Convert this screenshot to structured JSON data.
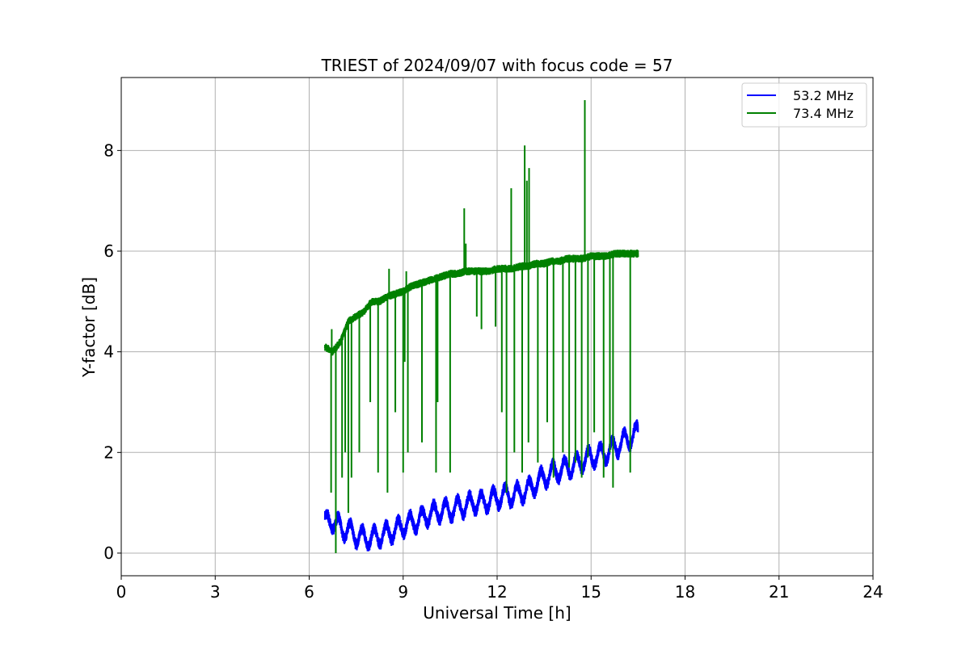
{
  "chart_data": {
    "type": "line",
    "title": "TRIEST of 2024/09/07 with focus code = 57",
    "xlabel": "Universal Time [h]",
    "ylabel": "Y-factor [dB]",
    "xlim": [
      0,
      24
    ],
    "ylim": [
      -0.45,
      9.45
    ],
    "xticks": [
      0,
      3,
      6,
      9,
      12,
      15,
      18,
      21,
      24
    ],
    "xtick_labels": [
      "0",
      "3",
      "6",
      "9",
      "12",
      "15",
      "18",
      "21",
      "24"
    ],
    "yticks": [
      0,
      2,
      4,
      6,
      8
    ],
    "ytick_labels": [
      "0",
      "2",
      "4",
      "6",
      "8"
    ],
    "grid": true,
    "legend_position": "top-right",
    "series": [
      {
        "name": "53.2 MHz",
        "color": "#0000ff",
        "x": [
          6.5,
          6.75,
          7.0,
          7.25,
          7.5,
          7.75,
          8.0,
          8.25,
          8.5,
          8.75,
          9.0,
          9.25,
          9.5,
          9.75,
          10.0,
          10.25,
          10.5,
          10.75,
          11.0,
          11.25,
          11.5,
          11.75,
          12.0,
          12.25,
          12.5,
          12.75,
          13.0,
          13.25,
          13.5,
          13.75,
          14.0,
          14.25,
          14.5,
          14.75,
          15.0,
          15.25,
          15.5,
          15.75,
          16.0,
          16.25,
          16.5
        ],
        "y": [
          0.6,
          0.65,
          0.5,
          0.45,
          0.35,
          0.3,
          0.3,
          0.35,
          0.4,
          0.45,
          0.55,
          0.6,
          0.65,
          0.75,
          0.8,
          0.85,
          0.85,
          0.9,
          0.95,
          1.0,
          1.0,
          1.05,
          1.1,
          1.15,
          1.15,
          1.2,
          1.25,
          1.4,
          1.5,
          1.6,
          1.65,
          1.7,
          1.75,
          1.85,
          1.9,
          1.95,
          2.0,
          2.1,
          2.2,
          2.3,
          2.4
        ]
      },
      {
        "name": "73.4 MHz",
        "color": "#008000",
        "x": [
          6.5,
          6.75,
          7.0,
          7.25,
          7.5,
          7.75,
          8.0,
          8.25,
          8.5,
          8.75,
          9.0,
          9.25,
          9.5,
          9.75,
          10.0,
          10.25,
          10.5,
          10.75,
          11.0,
          11.25,
          11.5,
          11.75,
          12.0,
          12.25,
          12.5,
          12.75,
          13.0,
          13.25,
          13.5,
          13.75,
          14.0,
          14.25,
          14.5,
          14.75,
          15.0,
          15.25,
          15.5,
          15.75,
          16.0,
          16.25,
          16.5
        ],
        "y": [
          4.1,
          4.0,
          4.2,
          4.6,
          4.7,
          4.8,
          5.0,
          5.0,
          5.1,
          5.15,
          5.2,
          5.3,
          5.35,
          5.4,
          5.45,
          5.5,
          5.55,
          5.55,
          5.6,
          5.6,
          5.6,
          5.6,
          5.65,
          5.65,
          5.65,
          5.7,
          5.7,
          5.75,
          5.75,
          5.8,
          5.8,
          5.85,
          5.85,
          5.85,
          5.9,
          5.9,
          5.9,
          5.95,
          5.95,
          5.95,
          5.95
        ],
        "spikes_up": [
          [
            6.72,
            4.45
          ],
          [
            7.48,
            4.75
          ],
          [
            8.55,
            5.65
          ],
          [
            9.1,
            5.6
          ],
          [
            10.95,
            6.85
          ],
          [
            11.0,
            6.15
          ],
          [
            12.45,
            7.25
          ],
          [
            12.88,
            8.1
          ],
          [
            12.95,
            7.4
          ],
          [
            13.02,
            7.65
          ],
          [
            14.8,
            9.0
          ]
        ],
        "spikes_down": [
          [
            6.7,
            1.2
          ],
          [
            6.85,
            0.0
          ],
          [
            7.05,
            1.5
          ],
          [
            7.15,
            2.0
          ],
          [
            7.25,
            0.8
          ],
          [
            7.35,
            1.5
          ],
          [
            7.6,
            2.0
          ],
          [
            7.95,
            3.0
          ],
          [
            8.2,
            1.6
          ],
          [
            8.5,
            1.2
          ],
          [
            8.75,
            2.8
          ],
          [
            9.0,
            1.6
          ],
          [
            9.05,
            3.8
          ],
          [
            9.15,
            2.0
          ],
          [
            9.6,
            2.2
          ],
          [
            10.05,
            1.6
          ],
          [
            10.1,
            3.0
          ],
          [
            10.5,
            1.6
          ],
          [
            11.35,
            4.7
          ],
          [
            11.5,
            4.45
          ],
          [
            11.95,
            4.5
          ],
          [
            12.15,
            2.8
          ],
          [
            12.3,
            1.2
          ],
          [
            12.55,
            2.0
          ],
          [
            12.8,
            1.6
          ],
          [
            13.0,
            2.2
          ],
          [
            13.3,
            1.8
          ],
          [
            13.6,
            2.6
          ],
          [
            13.8,
            1.5
          ],
          [
            14.1,
            2.0
          ],
          [
            14.3,
            1.7
          ],
          [
            14.5,
            1.8
          ],
          [
            14.7,
            1.5
          ],
          [
            14.9,
            1.9
          ],
          [
            15.1,
            2.4
          ],
          [
            15.4,
            1.5
          ],
          [
            15.6,
            2.0
          ],
          [
            15.7,
            1.3
          ],
          [
            16.25,
            1.6
          ]
        ]
      }
    ]
  }
}
